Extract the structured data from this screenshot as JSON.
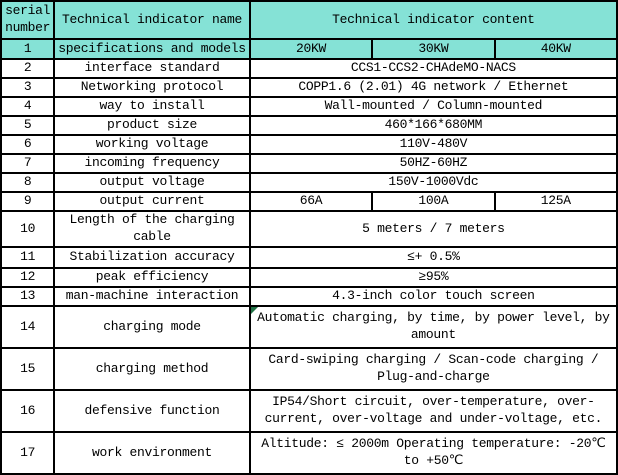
{
  "title": "EV charger technical indicator specification table",
  "colors": {
    "header_bg": "#85E2D6",
    "body_bg": "#FFFFFF",
    "border": "#000000",
    "error_indicator": "#217346"
  },
  "header": {
    "serial_line1": "serial",
    "serial_line2": "number",
    "name": "Technical indicator name",
    "content": "Technical indicator content"
  },
  "rows": [
    {
      "num": "1",
      "name": "specifications and models",
      "values": [
        "20KW",
        "30KW",
        "40KW"
      ]
    },
    {
      "num": "2",
      "name": "interface standard",
      "content": "CCS1-CCS2-CHAdeMO-NACS"
    },
    {
      "num": "3",
      "name": "Networking protocol",
      "content": "COPP1.6 (2.01) 4G network / Ethernet"
    },
    {
      "num": "4",
      "name": "way to install",
      "content": "Wall-mounted / Column-mounted"
    },
    {
      "num": "5",
      "name": "product size",
      "content": "460*166*680MM"
    },
    {
      "num": "6",
      "name": "working voltage",
      "content": "110V-480V"
    },
    {
      "num": "7",
      "name": "incoming frequency",
      "content": "50HZ-60HZ"
    },
    {
      "num": "8",
      "name": "output voltage",
      "content": "150V-1000Vdc"
    },
    {
      "num": "9",
      "name": "output current",
      "values": [
        "66A",
        "100A",
        "125A"
      ]
    },
    {
      "num": "10",
      "name": "Length of the charging cable",
      "content": "5 meters / 7 meters"
    },
    {
      "num": "11",
      "name": "Stabilization accuracy",
      "content": "≤+ 0.5%"
    },
    {
      "num": "12",
      "name": "peak efficiency",
      "content": "≥95%"
    },
    {
      "num": "13",
      "name": "man-machine interaction",
      "content": "4.3-inch color touch screen"
    },
    {
      "num": "14",
      "name": "charging mode",
      "content": "Automatic charging, by time, by power level, by amount"
    },
    {
      "num": "15",
      "name": "charging method",
      "content": "Card-swiping charging / Scan-code charging / Plug-and-charge"
    },
    {
      "num": "16",
      "name": "defensive function",
      "content": "IP54/Short circuit, over-temperature, over-current, over-voltage and under-voltage, etc."
    },
    {
      "num": "17",
      "name": "work environment",
      "content": "Altitude: ≤ 2000m Operating temperature: -20℃ to +50℃"
    }
  ]
}
